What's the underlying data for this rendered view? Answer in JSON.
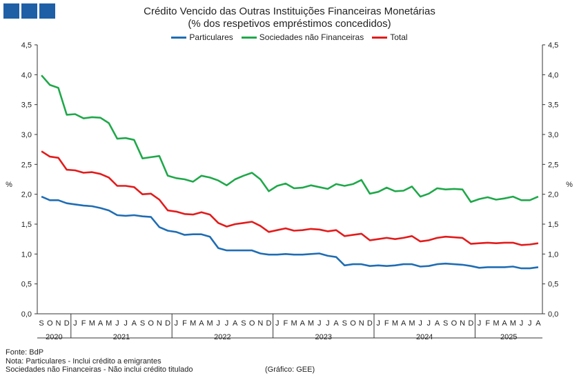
{
  "header": {
    "title_line1": "Crédito Vencido das Outras Instituições Financeiras Monetárias",
    "title_line2": "(% dos respetivos empréstimos concedidos)"
  },
  "footer": {
    "source": "Fonte: BdP",
    "note1": "Nota: Particulares - Inclui crédito a emigrantes",
    "note2": "Sociedades não Financeiras - Não inclui crédito titulado",
    "credit": "(Gráfico: GEE)"
  },
  "logo": {
    "color": "#1f5fa6"
  },
  "chart_data": {
    "type": "line",
    "ylabel_left": "%",
    "ylabel_right": "%",
    "ylim": [
      0,
      4.5
    ],
    "yticks": [
      "0,0",
      "0,5",
      "1,0",
      "1,5",
      "2,0",
      "2,5",
      "3,0",
      "3,5",
      "4,0",
      "4,5"
    ],
    "grid": false,
    "legend_position": "top",
    "months": [
      "S",
      "O",
      "N",
      "D",
      "J",
      "F",
      "M",
      "A",
      "M",
      "J",
      "J",
      "A",
      "S",
      "O",
      "N",
      "D",
      "J",
      "F",
      "M",
      "A",
      "M",
      "J",
      "J",
      "A",
      "S",
      "O",
      "N",
      "D",
      "J",
      "F",
      "M",
      "A",
      "M",
      "J",
      "J",
      "A",
      "S",
      "O",
      "N",
      "D",
      "J",
      "F",
      "M",
      "A",
      "M",
      "J",
      "J",
      "A",
      "S",
      "O",
      "N",
      "D",
      "J",
      "F",
      "M",
      "A",
      "M",
      "J",
      "J",
      "A"
    ],
    "years": [
      {
        "label": "2020",
        "start": 0,
        "count": 4
      },
      {
        "label": "2021",
        "start": 4,
        "count": 12
      },
      {
        "label": "2022",
        "start": 16,
        "count": 12
      },
      {
        "label": "2023",
        "start": 28,
        "count": 12
      },
      {
        "label": "2024",
        "start": 40,
        "count": 12
      },
      {
        "label": "2025",
        "start": 52,
        "count": 8
      }
    ],
    "series": [
      {
        "name": "Particulares",
        "color": "#1f6db4",
        "values": [
          1.96,
          1.9,
          1.9,
          1.85,
          1.83,
          1.81,
          1.8,
          1.77,
          1.73,
          1.65,
          1.64,
          1.65,
          1.63,
          1.62,
          1.45,
          1.39,
          1.37,
          1.32,
          1.33,
          1.33,
          1.29,
          1.1,
          1.06,
          1.06,
          1.06,
          1.06,
          1.01,
          0.99,
          0.99,
          1.0,
          0.99,
          0.99,
          1.0,
          1.01,
          0.97,
          0.95,
          0.81,
          0.83,
          0.83,
          0.8,
          0.81,
          0.8,
          0.81,
          0.83,
          0.83,
          0.79,
          0.8,
          0.83,
          0.84,
          0.83,
          0.82,
          0.8,
          0.77,
          0.78,
          0.78,
          0.78,
          0.79,
          0.76,
          0.76,
          0.78
        ]
      },
      {
        "name": "Sociedades não Financeiras",
        "color": "#1fa84a",
        "values": [
          3.99,
          3.83,
          3.78,
          3.33,
          3.34,
          3.27,
          3.29,
          3.28,
          3.19,
          2.93,
          2.94,
          2.91,
          2.6,
          2.62,
          2.64,
          2.31,
          2.27,
          2.25,
          2.21,
          2.31,
          2.28,
          2.23,
          2.15,
          2.25,
          2.31,
          2.36,
          2.25,
          2.05,
          2.14,
          2.18,
          2.1,
          2.11,
          2.15,
          2.12,
          2.09,
          2.17,
          2.14,
          2.17,
          2.24,
          2.01,
          2.04,
          2.11,
          2.05,
          2.06,
          2.13,
          1.96,
          2.01,
          2.1,
          2.08,
          2.09,
          2.08,
          1.87,
          1.92,
          1.95,
          1.91,
          1.93,
          1.96,
          1.9,
          1.9,
          1.96
        ]
      },
      {
        "name": "Total",
        "color": "#e31b1b",
        "values": [
          2.72,
          2.63,
          2.61,
          2.41,
          2.4,
          2.36,
          2.37,
          2.34,
          2.28,
          2.14,
          2.14,
          2.12,
          2.0,
          2.01,
          1.91,
          1.73,
          1.71,
          1.67,
          1.66,
          1.7,
          1.66,
          1.52,
          1.46,
          1.5,
          1.52,
          1.54,
          1.47,
          1.37,
          1.4,
          1.43,
          1.39,
          1.4,
          1.42,
          1.41,
          1.38,
          1.4,
          1.3,
          1.32,
          1.34,
          1.23,
          1.25,
          1.27,
          1.25,
          1.27,
          1.3,
          1.21,
          1.23,
          1.27,
          1.29,
          1.28,
          1.27,
          1.17,
          1.18,
          1.19,
          1.18,
          1.19,
          1.19,
          1.15,
          1.16,
          1.18
        ]
      }
    ]
  }
}
